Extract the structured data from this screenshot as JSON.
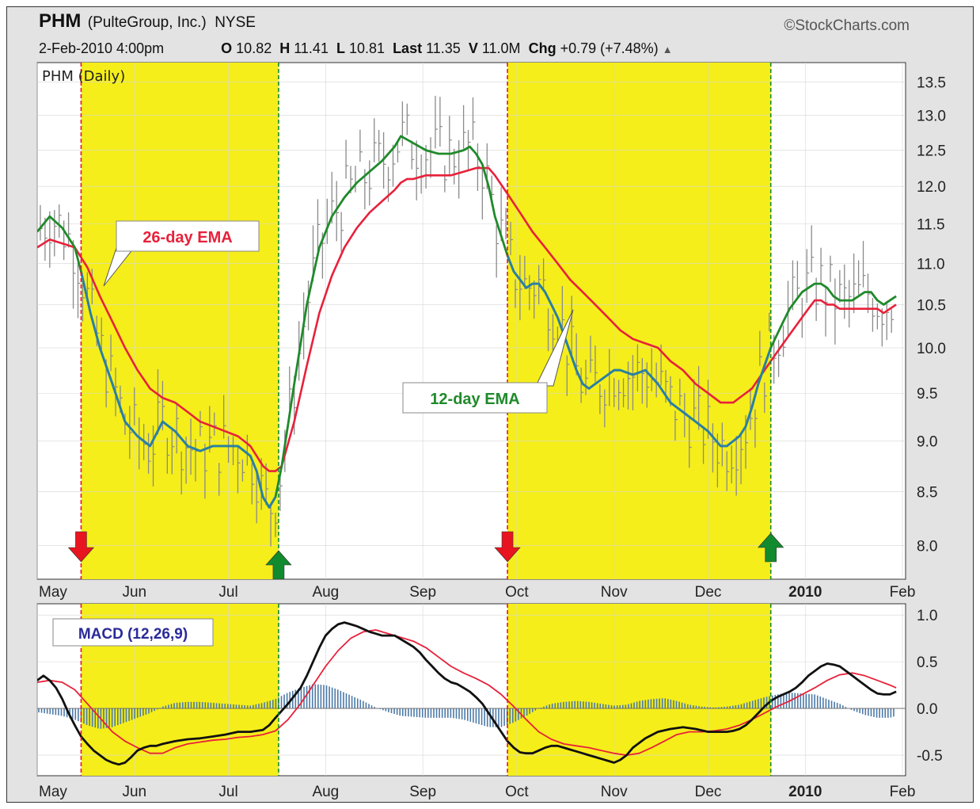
{
  "header": {
    "symbol": "PHM",
    "company": "(PulteGroup, Inc.)",
    "exchange": "NYSE",
    "source": "StockCharts.com",
    "date": "2-Feb-2010 4:00pm",
    "open_label": "O",
    "open": "10.82",
    "high_label": "H",
    "high": "11.41",
    "low_label": "L",
    "low": "10.81",
    "last_label": "Last",
    "last": "11.35",
    "volume_label": "V",
    "volume": "11.0M",
    "change_label": "Chg",
    "change": "+0.79 (+7.48%)"
  },
  "colors": {
    "highlight": "#f5ee1a",
    "ema12": "#2a7fa8",
    "ema12_callout": "#1f8a2a",
    "ema26": "#e8213a",
    "macd": "#111111",
    "signal": "#e8213a",
    "histogram": "#4c7aa8",
    "sell_arrow": "#e8141f",
    "buy_arrow": "#128a2e",
    "price_bars": "#8a8a8a"
  },
  "chart_data": [
    {
      "type": "line",
      "title": "PHM (Daily)",
      "y_scale": "log",
      "ylim": [
        7.7,
        13.8
      ],
      "y_ticks": [
        8.0,
        8.5,
        9.0,
        9.5,
        10.0,
        10.5,
        11.0,
        11.5,
        12.0,
        12.5,
        13.0,
        13.5
      ],
      "x_tick_labels": [
        "May",
        "Jun",
        "Jul",
        "Aug",
        "Sep",
        "Oct",
        "Nov",
        "Dec",
        "2010",
        "Feb"
      ],
      "x_tick_days": [
        0,
        31,
        61,
        92,
        123,
        153,
        184,
        214,
        245,
        276
      ],
      "x_range_days": [
        0,
        277
      ],
      "annotations": [
        "26-day EMA",
        "12-day EMA"
      ],
      "series": [
        {
          "name": "12-day EMA",
          "x_days": [
            0,
            4,
            8,
            12,
            14,
            17,
            20,
            24,
            28,
            32,
            36,
            40,
            44,
            48,
            52,
            56,
            60,
            64,
            68,
            70,
            72,
            74,
            76,
            78,
            82,
            86,
            90,
            94,
            98,
            102,
            106,
            110,
            114,
            116,
            118,
            120,
            124,
            128,
            130,
            132,
            136,
            138,
            140,
            142,
            144,
            146,
            150,
            152,
            154,
            156,
            158,
            160,
            162,
            164,
            166,
            168,
            170,
            172,
            174,
            176,
            178,
            180,
            182,
            184,
            186,
            190,
            194,
            198,
            202,
            206,
            210,
            214,
            218,
            220,
            222,
            224,
            226,
            228,
            230,
            232,
            234,
            236,
            238,
            240,
            242,
            244,
            246,
            248,
            250,
            252,
            254,
            256,
            258,
            260,
            262,
            264,
            266,
            268,
            270,
            272,
            274
          ],
          "values": [
            11.4,
            11.6,
            11.45,
            11.2,
            10.9,
            10.4,
            10.0,
            9.6,
            9.2,
            9.05,
            8.95,
            9.2,
            9.1,
            8.95,
            8.9,
            8.95,
            8.95,
            8.95,
            8.85,
            8.7,
            8.45,
            8.35,
            8.45,
            8.75,
            9.6,
            10.5,
            11.2,
            11.6,
            11.85,
            12.05,
            12.2,
            12.35,
            12.55,
            12.7,
            12.65,
            12.6,
            12.5,
            12.45,
            12.45,
            12.45,
            12.5,
            12.55,
            12.45,
            12.3,
            12.0,
            11.6,
            11.1,
            10.9,
            10.8,
            10.7,
            10.75,
            10.75,
            10.65,
            10.5,
            10.35,
            10.15,
            9.95,
            9.75,
            9.6,
            9.55,
            9.6,
            9.65,
            9.7,
            9.75,
            9.75,
            9.7,
            9.75,
            9.6,
            9.4,
            9.3,
            9.2,
            9.1,
            8.95,
            8.95,
            9.0,
            9.05,
            9.15,
            9.35,
            9.6,
            9.8,
            10.0,
            10.15,
            10.3,
            10.45,
            10.55,
            10.65,
            10.7,
            10.75,
            10.75,
            10.7,
            10.6,
            10.55,
            10.55,
            10.55,
            10.6,
            10.65,
            10.65,
            10.55,
            10.5,
            10.55,
            10.6
          ]
        },
        {
          "name": "26-day EMA",
          "x_days": [
            0,
            4,
            8,
            12,
            16,
            20,
            24,
            28,
            32,
            36,
            40,
            44,
            48,
            52,
            56,
            60,
            64,
            68,
            70,
            72,
            74,
            76,
            78,
            82,
            86,
            90,
            94,
            98,
            102,
            106,
            110,
            114,
            116,
            118,
            120,
            124,
            128,
            132,
            136,
            140,
            142,
            144,
            146,
            150,
            154,
            158,
            162,
            166,
            170,
            174,
            178,
            182,
            186,
            190,
            194,
            198,
            202,
            206,
            210,
            214,
            218,
            220,
            222,
            224,
            228,
            232,
            236,
            240,
            244,
            246,
            248,
            250,
            252,
            254,
            256,
            258,
            260,
            262,
            264,
            266,
            268,
            270,
            272,
            274
          ],
          "values": [
            11.2,
            11.3,
            11.25,
            11.2,
            10.95,
            10.6,
            10.3,
            10.0,
            9.75,
            9.55,
            9.45,
            9.4,
            9.3,
            9.2,
            9.15,
            9.1,
            9.05,
            8.95,
            8.85,
            8.75,
            8.7,
            8.7,
            8.75,
            9.2,
            9.8,
            10.4,
            10.85,
            11.2,
            11.45,
            11.65,
            11.8,
            11.95,
            12.05,
            12.1,
            12.1,
            12.15,
            12.15,
            12.15,
            12.2,
            12.25,
            12.25,
            12.25,
            12.15,
            11.9,
            11.65,
            11.4,
            11.2,
            11.0,
            10.8,
            10.65,
            10.5,
            10.35,
            10.2,
            10.1,
            10.05,
            10.0,
            9.85,
            9.75,
            9.6,
            9.5,
            9.4,
            9.4,
            9.4,
            9.45,
            9.55,
            9.75,
            9.95,
            10.15,
            10.35,
            10.45,
            10.55,
            10.55,
            10.5,
            10.5,
            10.45,
            10.45,
            10.45,
            10.45,
            10.45,
            10.45,
            10.45,
            10.4,
            10.45,
            10.5
          ]
        }
      ]
    },
    {
      "type": "line",
      "title": "MACD (12,26,9)",
      "ylim": [
        -0.72,
        1.12
      ],
      "y_ticks": [
        -0.5,
        0.0,
        0.5,
        1.0
      ],
      "x_tick_labels": [
        "May",
        "Jun",
        "Jul",
        "Aug",
        "Sep",
        "Oct",
        "Nov",
        "Dec",
        "2010",
        "Feb"
      ],
      "x_tick_days": [
        0,
        31,
        61,
        92,
        123,
        153,
        184,
        214,
        245,
        276
      ],
      "x_range_days": [
        0,
        277
      ],
      "series": [
        {
          "name": "MACD",
          "x_days": [
            0,
            2,
            4,
            6,
            8,
            10,
            12,
            14,
            16,
            18,
            20,
            22,
            24,
            26,
            28,
            30,
            32,
            34,
            36,
            38,
            40,
            44,
            48,
            52,
            56,
            60,
            64,
            68,
            72,
            74,
            76,
            80,
            84,
            86,
            88,
            90,
            92,
            94,
            96,
            98,
            100,
            102,
            104,
            106,
            108,
            110,
            112,
            114,
            116,
            118,
            120,
            122,
            124,
            126,
            128,
            130,
            132,
            134,
            136,
            138,
            140,
            142,
            144,
            146,
            148,
            150,
            152,
            154,
            156,
            158,
            160,
            162,
            164,
            166,
            168,
            170,
            172,
            174,
            176,
            178,
            180,
            182,
            184,
            186,
            188,
            190,
            194,
            198,
            202,
            206,
            210,
            214,
            218,
            220,
            222,
            224,
            226,
            228,
            230,
            232,
            234,
            236,
            238,
            240,
            242,
            244,
            246,
            248,
            250,
            252,
            254,
            256,
            258,
            260,
            262,
            264,
            266,
            268,
            270,
            272,
            274
          ],
          "values": [
            0.3,
            0.35,
            0.3,
            0.22,
            0.1,
            -0.05,
            -0.18,
            -0.3,
            -0.38,
            -0.45,
            -0.5,
            -0.55,
            -0.58,
            -0.6,
            -0.58,
            -0.52,
            -0.45,
            -0.42,
            -0.4,
            -0.4,
            -0.38,
            -0.35,
            -0.33,
            -0.32,
            -0.3,
            -0.28,
            -0.25,
            -0.25,
            -0.23,
            -0.18,
            -0.1,
            0.05,
            0.22,
            0.35,
            0.5,
            0.65,
            0.78,
            0.85,
            0.9,
            0.92,
            0.9,
            0.88,
            0.85,
            0.82,
            0.8,
            0.78,
            0.78,
            0.78,
            0.74,
            0.7,
            0.66,
            0.6,
            0.52,
            0.45,
            0.38,
            0.32,
            0.28,
            0.26,
            0.22,
            0.18,
            0.12,
            0.05,
            -0.05,
            -0.15,
            -0.25,
            -0.35,
            -0.42,
            -0.47,
            -0.48,
            -0.48,
            -0.45,
            -0.42,
            -0.4,
            -0.4,
            -0.42,
            -0.44,
            -0.46,
            -0.48,
            -0.5,
            -0.52,
            -0.54,
            -0.56,
            -0.58,
            -0.55,
            -0.5,
            -0.42,
            -0.32,
            -0.25,
            -0.22,
            -0.2,
            -0.22,
            -0.25,
            -0.25,
            -0.25,
            -0.24,
            -0.22,
            -0.18,
            -0.12,
            -0.05,
            0.02,
            0.08,
            0.12,
            0.15,
            0.18,
            0.22,
            0.28,
            0.35,
            0.4,
            0.45,
            0.48,
            0.47,
            0.45,
            0.4,
            0.35,
            0.3,
            0.25,
            0.2,
            0.16,
            0.15,
            0.15,
            0.18
          ]
        },
        {
          "name": "Signal",
          "x_days": [
            0,
            4,
            8,
            12,
            16,
            20,
            24,
            28,
            32,
            36,
            40,
            44,
            48,
            52,
            56,
            60,
            64,
            68,
            72,
            76,
            80,
            84,
            88,
            92,
            96,
            100,
            104,
            108,
            112,
            116,
            120,
            124,
            128,
            132,
            136,
            140,
            144,
            148,
            152,
            156,
            160,
            164,
            168,
            172,
            176,
            180,
            184,
            188,
            192,
            196,
            200,
            204,
            208,
            212,
            216,
            220,
            224,
            228,
            232,
            236,
            240,
            244,
            248,
            252,
            256,
            260,
            264,
            268,
            272,
            274
          ],
          "values": [
            0.28,
            0.3,
            0.28,
            0.2,
            0.05,
            -0.1,
            -0.25,
            -0.35,
            -0.42,
            -0.48,
            -0.48,
            -0.42,
            -0.38,
            -0.36,
            -0.34,
            -0.33,
            -0.31,
            -0.3,
            -0.28,
            -0.24,
            -0.12,
            0.05,
            0.25,
            0.45,
            0.62,
            0.75,
            0.82,
            0.84,
            0.8,
            0.76,
            0.72,
            0.65,
            0.55,
            0.45,
            0.38,
            0.32,
            0.25,
            0.15,
            0.02,
            -0.12,
            -0.25,
            -0.33,
            -0.38,
            -0.4,
            -0.42,
            -0.45,
            -0.48,
            -0.5,
            -0.48,
            -0.42,
            -0.35,
            -0.28,
            -0.25,
            -0.25,
            -0.24,
            -0.22,
            -0.18,
            -0.12,
            -0.05,
            0.02,
            0.08,
            0.15,
            0.22,
            0.3,
            0.36,
            0.38,
            0.35,
            0.3,
            0.25,
            0.22
          ]
        },
        {
          "name": "Histogram",
          "x_days": [
            0,
            4,
            8,
            12,
            16,
            20,
            24,
            28,
            32,
            36,
            40,
            44,
            48,
            52,
            56,
            60,
            64,
            68,
            72,
            76,
            80,
            84,
            88,
            92,
            96,
            100,
            104,
            108,
            112,
            116,
            120,
            124,
            128,
            132,
            136,
            140,
            144,
            148,
            152,
            156,
            160,
            164,
            168,
            172,
            176,
            180,
            184,
            188,
            192,
            196,
            200,
            204,
            208,
            212,
            216,
            220,
            224,
            228,
            232,
            236,
            240,
            244,
            248,
            252,
            256,
            260,
            264,
            268,
            272,
            274
          ],
          "values": [
            -0.04,
            -0.06,
            -0.08,
            -0.12,
            -0.18,
            -0.22,
            -0.2,
            -0.15,
            -0.1,
            -0.05,
            0.02,
            0.06,
            0.07,
            0.07,
            0.06,
            0.05,
            0.04,
            0.03,
            0.06,
            0.1,
            0.17,
            0.22,
            0.26,
            0.25,
            0.2,
            0.14,
            0.08,
            0.01,
            -0.04,
            -0.08,
            -0.09,
            -0.1,
            -0.1,
            -0.1,
            -0.12,
            -0.16,
            -0.2,
            -0.2,
            -0.15,
            -0.08,
            0.0,
            0.05,
            0.07,
            0.08,
            0.07,
            0.05,
            0.03,
            0.04,
            0.08,
            0.1,
            0.11,
            0.08,
            0.04,
            0.02,
            0.01,
            0.02,
            0.04,
            0.08,
            0.12,
            0.15,
            0.17,
            0.16,
            0.15,
            0.1,
            0.05,
            -0.02,
            -0.07,
            -0.1,
            -0.1,
            -0.08
          ]
        }
      ]
    }
  ],
  "shaded_periods_days": [
    [
      14,
      77
    ],
    [
      150,
      234
    ]
  ],
  "signals": [
    {
      "type": "sell",
      "day": 14
    },
    {
      "type": "buy",
      "day": 77
    },
    {
      "type": "sell",
      "day": 150
    },
    {
      "type": "buy",
      "day": 234
    }
  ]
}
